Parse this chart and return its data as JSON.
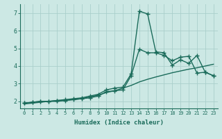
{
  "xlabel": "Humidex (Indice chaleur)",
  "x": [
    0,
    1,
    2,
    3,
    4,
    5,
    6,
    7,
    8,
    9,
    10,
    11,
    12,
    13,
    14,
    15,
    16,
    17,
    18,
    19,
    20,
    21,
    22,
    23
  ],
  "line1_y": [
    1.9,
    1.95,
    2.0,
    2.0,
    2.05,
    2.05,
    2.1,
    2.15,
    2.2,
    2.3,
    2.55,
    2.6,
    2.65,
    3.45,
    4.95,
    4.75,
    4.75,
    4.6,
    4.3,
    4.5,
    4.55,
    3.6,
    3.65,
    3.45
  ],
  "line2_y": [
    1.9,
    1.95,
    2.0,
    2.0,
    2.05,
    2.1,
    2.15,
    2.2,
    2.3,
    2.4,
    2.65,
    2.75,
    2.8,
    3.55,
    7.1,
    6.95,
    4.8,
    4.75,
    4.05,
    4.35,
    4.15,
    4.6,
    3.65,
    3.45
  ],
  "line3_y": [
    1.85,
    1.9,
    1.95,
    2.0,
    2.0,
    2.05,
    2.1,
    2.15,
    2.25,
    2.35,
    2.5,
    2.6,
    2.75,
    2.9,
    3.1,
    3.25,
    3.38,
    3.5,
    3.62,
    3.72,
    3.82,
    3.9,
    4.0,
    4.1
  ],
  "ylim": [
    1.6,
    7.5
  ],
  "xlim": [
    -0.5,
    23.5
  ],
  "yticks": [
    2,
    3,
    4,
    5,
    6,
    7
  ],
  "xticks": [
    0,
    1,
    2,
    3,
    4,
    5,
    6,
    7,
    8,
    9,
    10,
    11,
    12,
    13,
    14,
    15,
    16,
    17,
    18,
    19,
    20,
    21,
    22,
    23
  ],
  "line_color": "#1a6b5a",
  "bg_color": "#cce8e4",
  "grid_color": "#aacfcb",
  "marker": "+",
  "markersize": 4,
  "linewidth": 1.0,
  "tick_fontsize": 5.0,
  "xlabel_fontsize": 6.5
}
